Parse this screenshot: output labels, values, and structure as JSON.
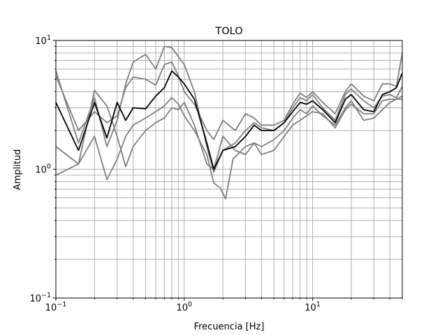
{
  "chart_data": {
    "type": "line",
    "title": "TOLO",
    "xlabel": "Frecuencia [Hz]",
    "ylabel": "Amplitud",
    "xscale": "log",
    "yscale": "log",
    "xlim": [
      0.1,
      50
    ],
    "ylim": [
      0.1,
      10
    ],
    "grid": "both (major and minor)",
    "legend": "none",
    "x_ticks": [
      {
        "value": 0.1,
        "base": "10",
        "exp": "−1"
      },
      {
        "value": 1,
        "base": "10",
        "exp": "0"
      },
      {
        "value": 10,
        "base": "10",
        "exp": "1"
      }
    ],
    "y_ticks": [
      {
        "value": 0.1,
        "base": "10",
        "exp": "−1"
      },
      {
        "value": 1,
        "base": "10",
        "exp": "0"
      },
      {
        "value": 10,
        "base": "10",
        "exp": "1"
      }
    ],
    "colors": {
      "individual": "#808080",
      "mean": "#000000",
      "grid": "#b0b0b0"
    },
    "series": [
      {
        "kind": "individual",
        "points": [
          [
            0.1,
            5.8
          ],
          [
            0.15,
            1.6
          ],
          [
            0.2,
            3.6
          ],
          [
            0.25,
            1.5
          ],
          [
            0.3,
            2.4
          ],
          [
            0.35,
            4.6
          ],
          [
            0.4,
            6.8
          ],
          [
            0.5,
            7.8
          ],
          [
            0.6,
            6.0
          ],
          [
            0.7,
            9.0
          ],
          [
            0.8,
            8.8
          ],
          [
            0.9,
            7.5
          ],
          [
            1.0,
            6.5
          ],
          [
            1.2,
            4.0
          ],
          [
            1.5,
            1.5
          ],
          [
            1.7,
            0.95
          ],
          [
            2.0,
            1.4
          ],
          [
            2.5,
            1.6
          ],
          [
            3.0,
            2.0
          ],
          [
            3.5,
            2.3
          ],
          [
            4.0,
            2.1
          ],
          [
            5.0,
            2.0
          ],
          [
            6.0,
            2.3
          ],
          [
            7.0,
            3.0
          ],
          [
            8.0,
            3.6
          ],
          [
            9.0,
            3.4
          ],
          [
            10.0,
            3.8
          ],
          [
            12.0,
            3.0
          ],
          [
            15.0,
            2.4
          ],
          [
            18.0,
            3.8
          ],
          [
            20.0,
            4.2
          ],
          [
            25.0,
            3.4
          ],
          [
            30.0,
            3.0
          ],
          [
            35.0,
            3.7
          ],
          [
            40.0,
            3.8
          ],
          [
            45.0,
            3.6
          ],
          [
            50.0,
            4.4
          ]
        ]
      },
      {
        "kind": "individual",
        "points": [
          [
            0.1,
            0.9
          ],
          [
            0.15,
            1.1
          ],
          [
            0.2,
            1.8
          ],
          [
            0.25,
            0.83
          ],
          [
            0.3,
            1.2
          ],
          [
            0.35,
            1.8
          ],
          [
            0.4,
            2.2
          ],
          [
            0.5,
            2.5
          ],
          [
            0.6,
            2.8
          ],
          [
            0.7,
            3.1
          ],
          [
            0.8,
            3.6
          ],
          [
            0.9,
            3.2
          ],
          [
            1.0,
            2.6
          ],
          [
            1.2,
            2.0
          ],
          [
            1.5,
            1.3
          ],
          [
            1.7,
            0.78
          ],
          [
            1.9,
            0.72
          ],
          [
            2.1,
            0.59
          ],
          [
            2.4,
            1.2
          ],
          [
            3.0,
            1.5
          ],
          [
            3.5,
            1.6
          ],
          [
            4.0,
            1.5
          ],
          [
            5.0,
            1.7
          ],
          [
            6.0,
            2.0
          ],
          [
            7.0,
            2.5
          ],
          [
            8.0,
            2.9
          ],
          [
            9.0,
            2.7
          ],
          [
            10.0,
            3.1
          ],
          [
            12.0,
            2.6
          ],
          [
            15.0,
            2.2
          ],
          [
            18.0,
            3.0
          ],
          [
            20.0,
            3.4
          ],
          [
            25.0,
            2.4
          ],
          [
            30.0,
            2.5
          ],
          [
            40.0,
            3.3
          ],
          [
            50.0,
            3.7
          ]
        ]
      },
      {
        "kind": "individual",
        "points": [
          [
            0.1,
            5.3
          ],
          [
            0.15,
            2.0
          ],
          [
            0.2,
            2.8
          ],
          [
            0.25,
            2.3
          ],
          [
            0.3,
            2.6
          ],
          [
            0.35,
            4.3
          ],
          [
            0.4,
            5.2
          ],
          [
            0.5,
            5.0
          ],
          [
            0.6,
            4.5
          ],
          [
            0.7,
            6.5
          ],
          [
            0.8,
            6.8
          ],
          [
            0.9,
            5.3
          ],
          [
            1.0,
            4.0
          ],
          [
            1.2,
            3.2
          ],
          [
            1.5,
            2.0
          ],
          [
            1.7,
            1.7
          ],
          [
            2.0,
            2.4
          ],
          [
            2.5,
            2.0
          ],
          [
            3.0,
            2.7
          ],
          [
            3.5,
            2.5
          ],
          [
            4.0,
            2.2
          ],
          [
            5.0,
            2.2
          ],
          [
            6.0,
            2.4
          ],
          [
            7.0,
            3.2
          ],
          [
            8.0,
            3.9
          ],
          [
            9.0,
            3.6
          ],
          [
            10.0,
            4.0
          ],
          [
            12.0,
            3.3
          ],
          [
            15.0,
            2.7
          ],
          [
            18.0,
            4.0
          ],
          [
            20.0,
            4.6
          ],
          [
            25.0,
            3.7
          ],
          [
            30.0,
            3.4
          ],
          [
            35.0,
            4.6
          ],
          [
            40.0,
            4.6
          ],
          [
            45.0,
            4.4
          ],
          [
            50.0,
            8.0
          ]
        ]
      },
      {
        "kind": "individual",
        "points": [
          [
            0.1,
            1.5
          ],
          [
            0.15,
            1.1
          ],
          [
            0.2,
            4.1
          ],
          [
            0.25,
            3.1
          ],
          [
            0.3,
            1.8
          ],
          [
            0.35,
            1.05
          ],
          [
            0.4,
            1.5
          ],
          [
            0.5,
            2.0
          ],
          [
            0.6,
            2.3
          ],
          [
            0.7,
            2.5
          ],
          [
            0.8,
            3.0
          ],
          [
            0.9,
            2.9
          ],
          [
            1.0,
            3.3
          ],
          [
            1.2,
            2.2
          ],
          [
            1.5,
            1.1
          ],
          [
            1.7,
            1.0
          ],
          [
            2.0,
            1.8
          ],
          [
            2.5,
            1.4
          ],
          [
            3.0,
            1.3
          ],
          [
            3.5,
            1.6
          ],
          [
            4.0,
            1.3
          ],
          [
            5.0,
            1.4
          ],
          [
            6.0,
            1.8
          ],
          [
            7.0,
            2.2
          ],
          [
            8.0,
            2.4
          ],
          [
            9.0,
            2.6
          ],
          [
            10.0,
            2.8
          ],
          [
            12.0,
            2.7
          ],
          [
            15.0,
            2.1
          ],
          [
            18.0,
            2.9
          ],
          [
            20.0,
            3.2
          ],
          [
            25.0,
            2.7
          ],
          [
            30.0,
            2.7
          ],
          [
            35.0,
            3.4
          ],
          [
            40.0,
            3.5
          ],
          [
            50.0,
            3.5
          ]
        ]
      },
      {
        "kind": "mean",
        "points": [
          [
            0.1,
            3.3
          ],
          [
            0.15,
            1.4
          ],
          [
            0.2,
            3.3
          ],
          [
            0.25,
            1.75
          ],
          [
            0.3,
            3.3
          ],
          [
            0.35,
            2.4
          ],
          [
            0.4,
            3.0
          ],
          [
            0.5,
            2.95
          ],
          [
            0.6,
            3.7
          ],
          [
            0.7,
            4.3
          ],
          [
            0.8,
            5.8
          ],
          [
            0.9,
            5.2
          ],
          [
            1.0,
            4.6
          ],
          [
            1.2,
            3.5
          ],
          [
            1.5,
            1.6
          ],
          [
            1.7,
            1.0
          ],
          [
            2.0,
            1.4
          ],
          [
            2.5,
            1.5
          ],
          [
            3.0,
            1.8
          ],
          [
            3.5,
            2.2
          ],
          [
            4.0,
            2.0
          ],
          [
            5.0,
            2.0
          ],
          [
            6.0,
            2.3
          ],
          [
            7.0,
            2.8
          ],
          [
            8.0,
            3.3
          ],
          [
            9.0,
            3.2
          ],
          [
            10.0,
            3.4
          ],
          [
            12.0,
            2.9
          ],
          [
            15.0,
            2.3
          ],
          [
            18.0,
            3.5
          ],
          [
            20.0,
            3.8
          ],
          [
            25.0,
            2.9
          ],
          [
            30.0,
            2.8
          ],
          [
            35.0,
            3.8
          ],
          [
            40.0,
            4.0
          ],
          [
            45.0,
            4.3
          ],
          [
            50.0,
            5.6
          ]
        ]
      }
    ]
  }
}
